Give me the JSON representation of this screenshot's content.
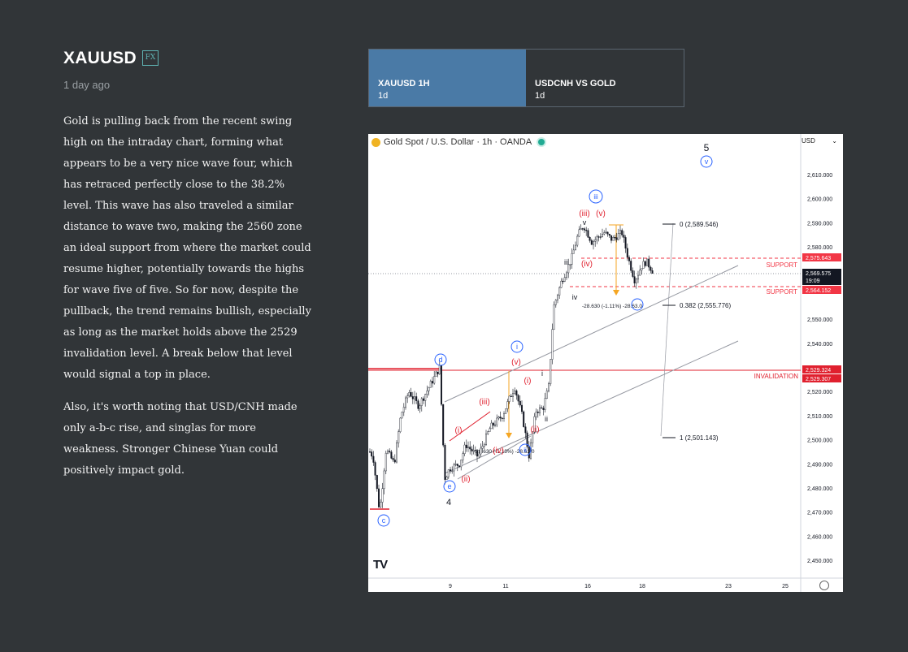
{
  "article": {
    "title": "XAUUSD",
    "badge": "FX",
    "time_ago": "1 day ago",
    "paragraphs": [
      "Gold is pulling back from the recent swing high on the intraday chart, forming what appears to be a very nice wave four, which has retraced perfectly close to the 38.2% level. This wave has also traveled a similar distance to wave two, making the 2560 zone an ideal support from where the market could resume higher, potentially towards the highs for wave five of five. So for now, despite the pullback, the trend remains bullish, especially as long as the market holds above the 2529 invalidation level. A break below that level would signal a top in place.",
      "Also, it's worth noting that USD/CNH made only a-b-c rise, and singlas for more weakness. Stronger Chinese Yuan could positively impact gold."
    ]
  },
  "tabs": [
    {
      "name": "XAUUSD 1H",
      "timeframe": "1d",
      "active": true
    },
    {
      "name": "USDCNH VS GOLD",
      "timeframe": "1d",
      "active": false
    }
  ],
  "chart": {
    "header": "Gold Spot / U.S. Dollar · 1h · OANDA",
    "currency": "USD",
    "logo": "TV",
    "colors": {
      "support": "#f23645",
      "invalidation": "#e0202e",
      "wave_blue": "#2962ff",
      "wave_red": "#e0202e",
      "fib": "#f5a623"
    },
    "fib_levels": {
      "level_0": "0 (2,589.546)",
      "level_382": "0.382 (2,555.776)",
      "level_1": "1 (2,501.143)"
    },
    "measure_labels": [
      "-28.630 (-1.11%) -28.63.0",
      "-28.630 (-1.13%) -28.63.0"
    ],
    "line_labels": {
      "support": "SUPPORT",
      "invalidation": "INVALIDATION"
    }
  },
  "chart_data": {
    "type": "candlestick",
    "x_ticks": [
      "9",
      "11",
      "16",
      "18",
      "23",
      "25"
    ],
    "y_ticks": [
      "2,610.000",
      "2,600.000",
      "2,590.000",
      "2,580.000",
      "2,550.000",
      "2,540.000",
      "2,520.000",
      "2,510.000",
      "2,500.000",
      "2,490.000",
      "2,480.000",
      "2,470.000",
      "2,460.000",
      "2,450.000"
    ],
    "ylim": [
      2446,
      2618
    ],
    "price_tags": [
      {
        "text": "2,575.643",
        "value": 2575.643,
        "color": "#f23645"
      },
      {
        "text": "2,569.575",
        "sub": "19:09",
        "value": 2569.575,
        "color": "#131722"
      },
      {
        "text": "2,564.152",
        "value": 2564.152,
        "color": "#f23645"
      },
      {
        "text": "2,529.324",
        "value": 2529.324,
        "color": "#e0202e"
      },
      {
        "text": "2,529.307",
        "value": 2529.307,
        "color": "#e0202e"
      }
    ],
    "support_levels": [
      2575.643,
      2564.152
    ],
    "invalidation_level": 2529.32,
    "fib_values": [
      2589.546,
      2555.776,
      2501.143
    ],
    "wave_labels": {
      "c": "c",
      "d": "d",
      "e": "e",
      "four": "4",
      "five": "5",
      "v_circle": "v",
      "i_circle": "i",
      "ii_circle": "ii",
      "iii_circle": "iii",
      "i_paren": "(i)",
      "ii_paren": "(ii)",
      "iii_paren": "(iii)",
      "iv_paren": "(iv)",
      "v_paren": "(v)",
      "i": "i",
      "ii": "ii",
      "iii": "iii",
      "iv": "iv",
      "v": "v"
    }
  }
}
